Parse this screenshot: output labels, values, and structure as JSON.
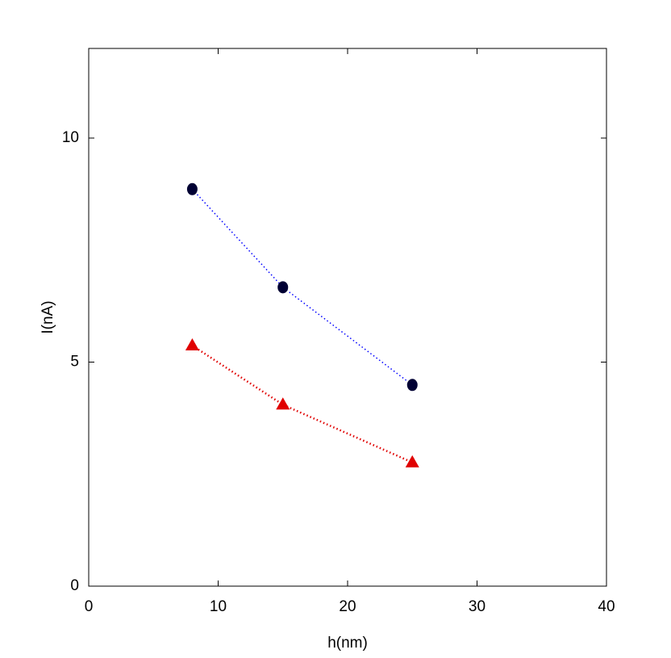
{
  "chart_data": {
    "type": "line",
    "x_label": "h(nm)",
    "y_label": "I(nA)",
    "xlim": [
      0,
      40
    ],
    "xticks": [
      0,
      10,
      20,
      30,
      40
    ],
    "ylim": [
      0,
      12
    ],
    "yticks": [
      0,
      5,
      10
    ],
    "series": [
      {
        "color": "#000033",
        "line_color": "#0000ff",
        "marker": "circle",
        "x": [
          8,
          15,
          25
        ],
        "values": [
          8.86,
          6.67,
          4.49
        ]
      },
      {
        "color": "#e00000",
        "line_color": "#e00000",
        "marker": "triangle",
        "x": [
          8,
          15,
          25
        ],
        "values": [
          5.37,
          4.05,
          2.76
        ]
      }
    ]
  }
}
